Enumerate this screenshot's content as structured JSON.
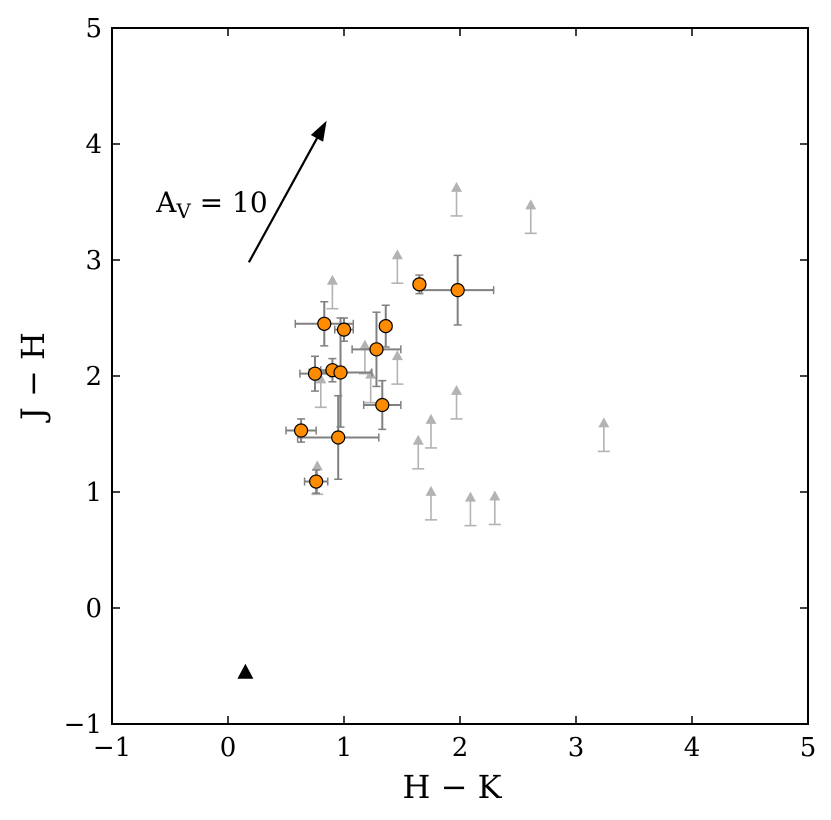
{
  "chart_data": {
    "type": "scatter",
    "title": "",
    "xlabel": "H − K",
    "ylabel": "J − H",
    "xlim": [
      -1,
      5
    ],
    "ylim": [
      -1,
      5
    ],
    "xticks": [
      -1,
      0,
      1,
      2,
      3,
      4,
      5
    ],
    "yticks": [
      -1,
      0,
      1,
      2,
      3,
      4,
      5
    ],
    "xtick_labels": [
      "−1",
      "0",
      "1",
      "2",
      "3",
      "4",
      "5"
    ],
    "ytick_labels": [
      "−1",
      "0",
      "1",
      "2",
      "3",
      "4",
      "5"
    ],
    "grid": false,
    "legend": "none",
    "colors": {
      "detections": "#ff8c00",
      "detection_edge": "#000000",
      "errorbars": "#808080",
      "lower_limits": "#b3b3b3",
      "reddening_vector": "#000000",
      "reference_marker": "#000000"
    },
    "series": [
      {
        "marker": "circle",
        "points": [
          {
            "x": 0.63,
            "y": 1.53,
            "xerr": 0.13,
            "yerr": 0.1
          },
          {
            "x": 0.75,
            "y": 2.02,
            "xerr": 0.13,
            "yerr": 0.15
          },
          {
            "x": 0.76,
            "y": 1.09,
            "xerr": 0.1,
            "yerr": 0.1
          },
          {
            "x": 0.83,
            "y": 2.45,
            "xerr": 0.25,
            "yerr": 0.19
          },
          {
            "x": 0.9,
            "y": 2.05,
            "xerr": 0.1,
            "yerr": 0.1
          },
          {
            "x": 0.95,
            "y": 1.47,
            "xerr": 0.35,
            "yerr": 0.36
          },
          {
            "x": 0.97,
            "y": 2.03,
            "xerr": 0.27,
            "yerr": 0.47
          },
          {
            "x": 1.0,
            "y": 2.4,
            "xerr": 0.08,
            "yerr": 0.1
          },
          {
            "x": 1.28,
            "y": 2.23,
            "xerr": 0.21,
            "yerr": 0.32
          },
          {
            "x": 1.33,
            "y": 1.75,
            "xerr": 0.16,
            "yerr": 0.21
          },
          {
            "x": 1.36,
            "y": 2.43,
            "xerr": 0.05,
            "yerr": 0.18
          },
          {
            "x": 1.65,
            "y": 2.79,
            "xerr": 0.05,
            "yerr": 0.08
          },
          {
            "x": 1.98,
            "y": 2.74,
            "xerr": 0.31,
            "yerr": 0.3
          }
        ]
      },
      {
        "marker": "arrow-up",
        "points": [
          {
            "x": 0.77,
            "y": 0.98
          },
          {
            "x": 0.8,
            "y": 1.73
          },
          {
            "x": 0.9,
            "y": 2.58
          },
          {
            "x": 1.18,
            "y": 2.02
          },
          {
            "x": 1.23,
            "y": 1.77
          },
          {
            "x": 1.46,
            "y": 1.93
          },
          {
            "x": 1.46,
            "y": 2.8
          },
          {
            "x": 1.64,
            "y": 1.2
          },
          {
            "x": 1.75,
            "y": 0.76
          },
          {
            "x": 1.75,
            "y": 1.38
          },
          {
            "x": 1.97,
            "y": 1.63
          },
          {
            "x": 1.97,
            "y": 3.38
          },
          {
            "x": 2.09,
            "y": 0.71
          },
          {
            "x": 2.3,
            "y": 0.72
          },
          {
            "x": 2.61,
            "y": 3.23
          },
          {
            "x": 3.24,
            "y": 1.35
          }
        ]
      }
    ],
    "reddening_vector": {
      "x0": 0.18,
      "y0": 2.98,
      "x1": 0.85,
      "y1": 4.2
    },
    "annotation": {
      "text_main": "A",
      "text_sub": "V",
      "text_rest": " = 10",
      "x": -0.62,
      "y": 3.5
    },
    "reference_marker": {
      "x": 0.15,
      "y": -0.55,
      "marker": "triangle"
    }
  }
}
